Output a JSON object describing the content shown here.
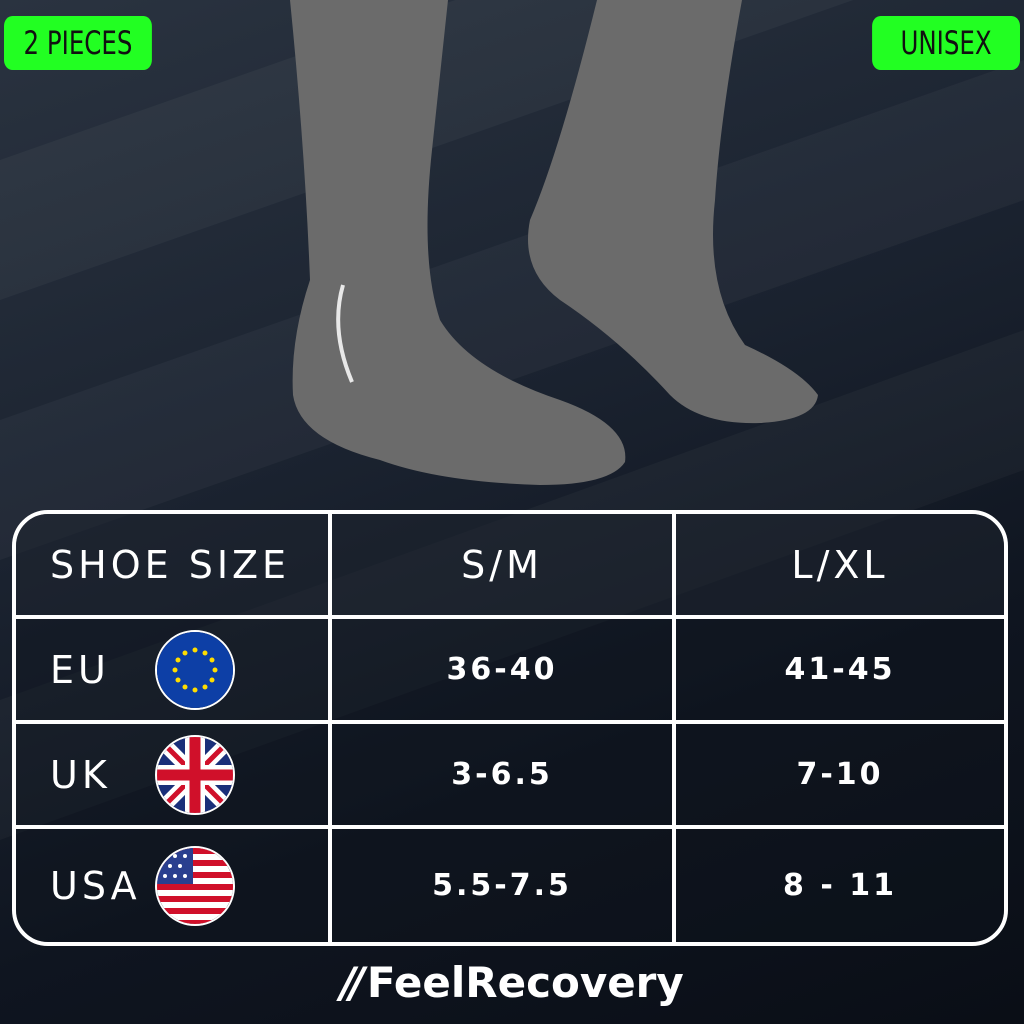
{
  "badges": {
    "left": "2 PIECES",
    "right": "UNISEX",
    "color": "#22ff22"
  },
  "table": {
    "headers": [
      "SHOE SIZE",
      "S/M",
      "L/XL"
    ],
    "rows": [
      {
        "region": "EU",
        "flag": "eu-flag-icon",
        "sm": "36-40",
        "lxl": "41-45"
      },
      {
        "region": "UK",
        "flag": "uk-flag-icon",
        "sm": "3-6.5",
        "lxl": "7-10"
      },
      {
        "region": "USA",
        "flag": "usa-flag-icon",
        "sm": "5.5-7.5",
        "lxl": "8 - 11"
      }
    ]
  },
  "brand": {
    "name": "FeelRecovery",
    "logo_mark": "//"
  }
}
